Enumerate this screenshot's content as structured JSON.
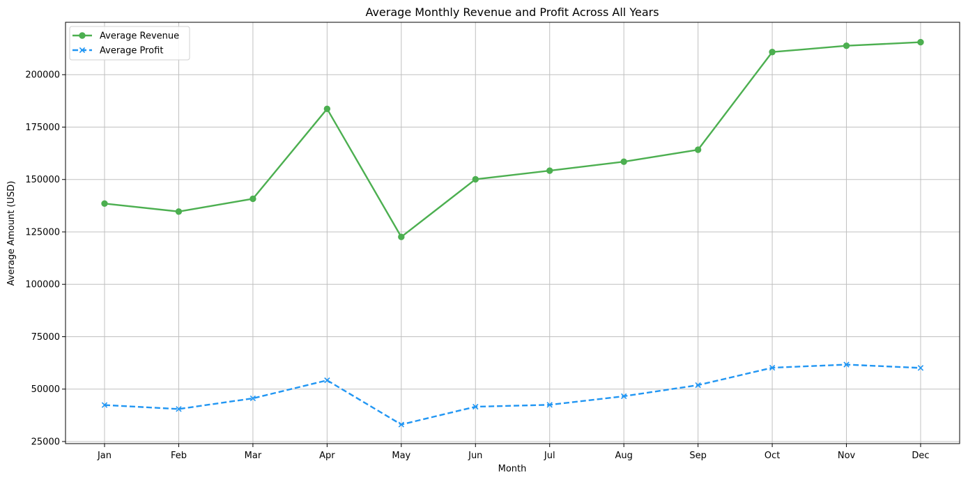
{
  "chart_data": {
    "type": "line",
    "title": "Average Monthly Revenue and Profit Across All Years",
    "xlabel": "Month",
    "ylabel": "Average Amount (USD)",
    "categories": [
      "Jan",
      "Feb",
      "Mar",
      "Apr",
      "May",
      "Jun",
      "Jul",
      "Aug",
      "Sep",
      "Oct",
      "Nov",
      "Dec"
    ],
    "ylim": [
      24000,
      225000
    ],
    "yticks": [
      25000,
      50000,
      75000,
      100000,
      125000,
      150000,
      175000,
      200000
    ],
    "yticklabels": [
      "25000",
      "50000",
      "75000",
      "100000",
      "125000",
      "150000",
      "175000",
      "200000"
    ],
    "grid": true,
    "legend_position": "upper-left",
    "series": [
      {
        "name": "Average Revenue",
        "color": "#4caf50",
        "line_style": "solid",
        "marker": "circle",
        "values": [
          138500,
          134700,
          140800,
          183700,
          122600,
          150100,
          154200,
          158500,
          164200,
          210800,
          213800,
          215500
        ]
      },
      {
        "name": "Average Profit",
        "color": "#2196f3",
        "line_style": "dashed",
        "marker": "x",
        "values": [
          42400,
          40500,
          45600,
          54200,
          33100,
          41600,
          42500,
          46600,
          51900,
          60200,
          61700,
          60100
        ]
      }
    ]
  }
}
